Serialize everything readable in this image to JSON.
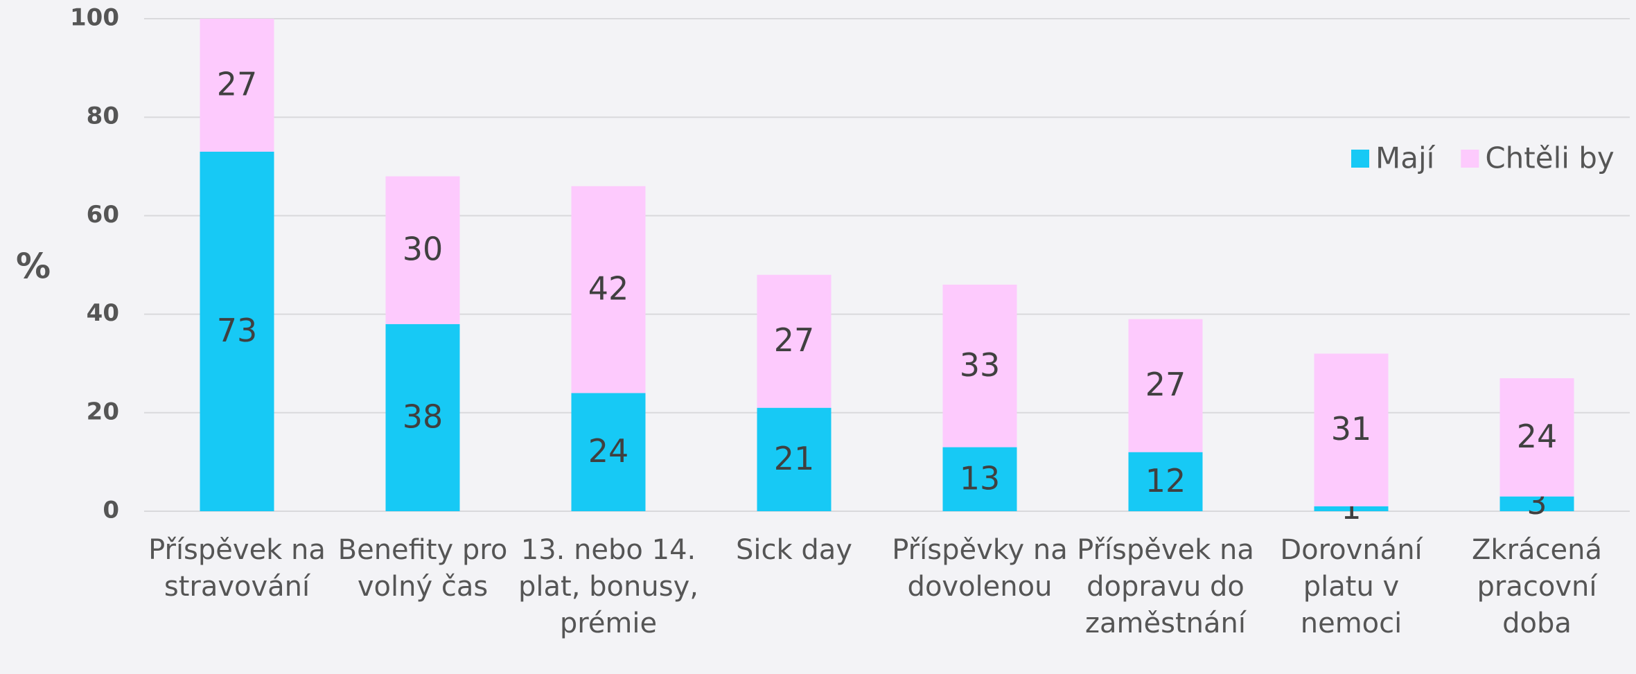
{
  "chart_data": {
    "type": "stacked_bar",
    "y_label": "%",
    "categories": [
      "Příspěvek na stravování",
      "Benefity pro volný čas",
      "13. nebo 14. plat, bonusy, prémie",
      "Sick day",
      "Příspěvky na dovolenou",
      "Příspěvek na dopravu do zaměstnání",
      "Dorovnání platu v nemoci",
      "Zkrácená pracovní doba"
    ],
    "series": [
      {
        "name": "Mají",
        "color": "#17c9f5",
        "values": [
          73,
          38,
          24,
          21,
          13,
          12,
          1,
          3
        ]
      },
      {
        "name": "Chtěli by",
        "color": "#fdcafd",
        "values": [
          27,
          30,
          42,
          27,
          33,
          27,
          31,
          24
        ]
      }
    ],
    "ylim": [
      0,
      100
    ],
    "yticks": [
      0,
      20,
      40,
      60,
      80,
      100
    ],
    "grid": true,
    "legend": "top-right"
  }
}
